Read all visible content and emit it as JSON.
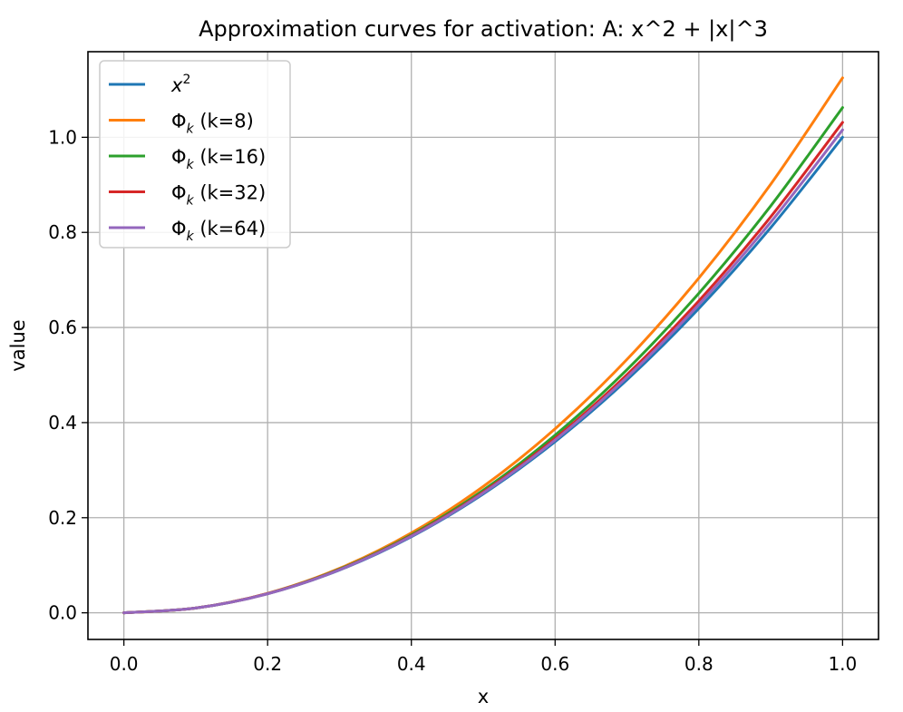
{
  "chart_data": {
    "type": "line",
    "title": "Approximation curves for activation: A: x^2 + |x|^3",
    "xlabel": "x",
    "ylabel": "value",
    "xlim": [
      -0.05,
      1.05
    ],
    "ylim": [
      -0.056,
      1.18
    ],
    "xticks": [
      0.0,
      0.2,
      0.4,
      0.6,
      0.8,
      1.0
    ],
    "xtick_labels": [
      "0.0",
      "0.2",
      "0.4",
      "0.6",
      "0.8",
      "1.0"
    ],
    "yticks": [
      0.0,
      0.2,
      0.4,
      0.6,
      0.8,
      1.0
    ],
    "ytick_labels": [
      "0.0",
      "0.2",
      "0.4",
      "0.6",
      "0.8",
      "1.0"
    ],
    "grid": true,
    "legend_position": "top-left",
    "x": [
      0.0,
      0.1,
      0.2,
      0.3,
      0.4,
      0.5,
      0.6,
      0.7,
      0.8,
      0.9,
      1.0
    ],
    "series": [
      {
        "name": "x^2",
        "label_main": "x",
        "label_sup": "2",
        "label_rest": "",
        "color": "#1f77b4",
        "values": [
          0.0,
          0.01,
          0.04,
          0.09,
          0.16,
          0.25,
          0.36,
          0.49,
          0.64,
          0.81,
          1.0
        ]
      },
      {
        "name": "Φ_k (k=8)",
        "label_main": "Φ",
        "label_sub": "k",
        "label_rest": " (k=8)",
        "color": "#ff7f0e",
        "values": [
          0.0,
          0.0101,
          0.041,
          0.0934,
          0.168,
          0.2656,
          0.387,
          0.5329,
          0.704,
          0.9012,
          1.125
        ]
      },
      {
        "name": "Φ_k (k=16)",
        "label_main": "Φ",
        "label_sub": "k",
        "label_rest": " (k=16)",
        "color": "#2ca02c",
        "values": [
          0.0,
          0.01,
          0.0405,
          0.0917,
          0.164,
          0.2578,
          0.3735,
          0.5114,
          0.672,
          0.8556,
          1.0625
        ]
      },
      {
        "name": "Φ_k (k=32)",
        "label_main": "Φ",
        "label_sub": "k",
        "label_rest": " (k=32)",
        "color": "#d62728",
        "values": [
          0.0,
          0.01,
          0.0403,
          0.0908,
          0.162,
          0.2539,
          0.3668,
          0.5007,
          0.656,
          0.8328,
          1.0313
        ]
      },
      {
        "name": "Φ_k (k=64)",
        "label_main": "Φ",
        "label_sub": "k",
        "label_rest": " (k=64)",
        "color": "#9467bd",
        "values": [
          0.0,
          0.01,
          0.0401,
          0.0904,
          0.161,
          0.252,
          0.3634,
          0.4954,
          0.648,
          0.8214,
          1.0156
        ]
      }
    ]
  }
}
